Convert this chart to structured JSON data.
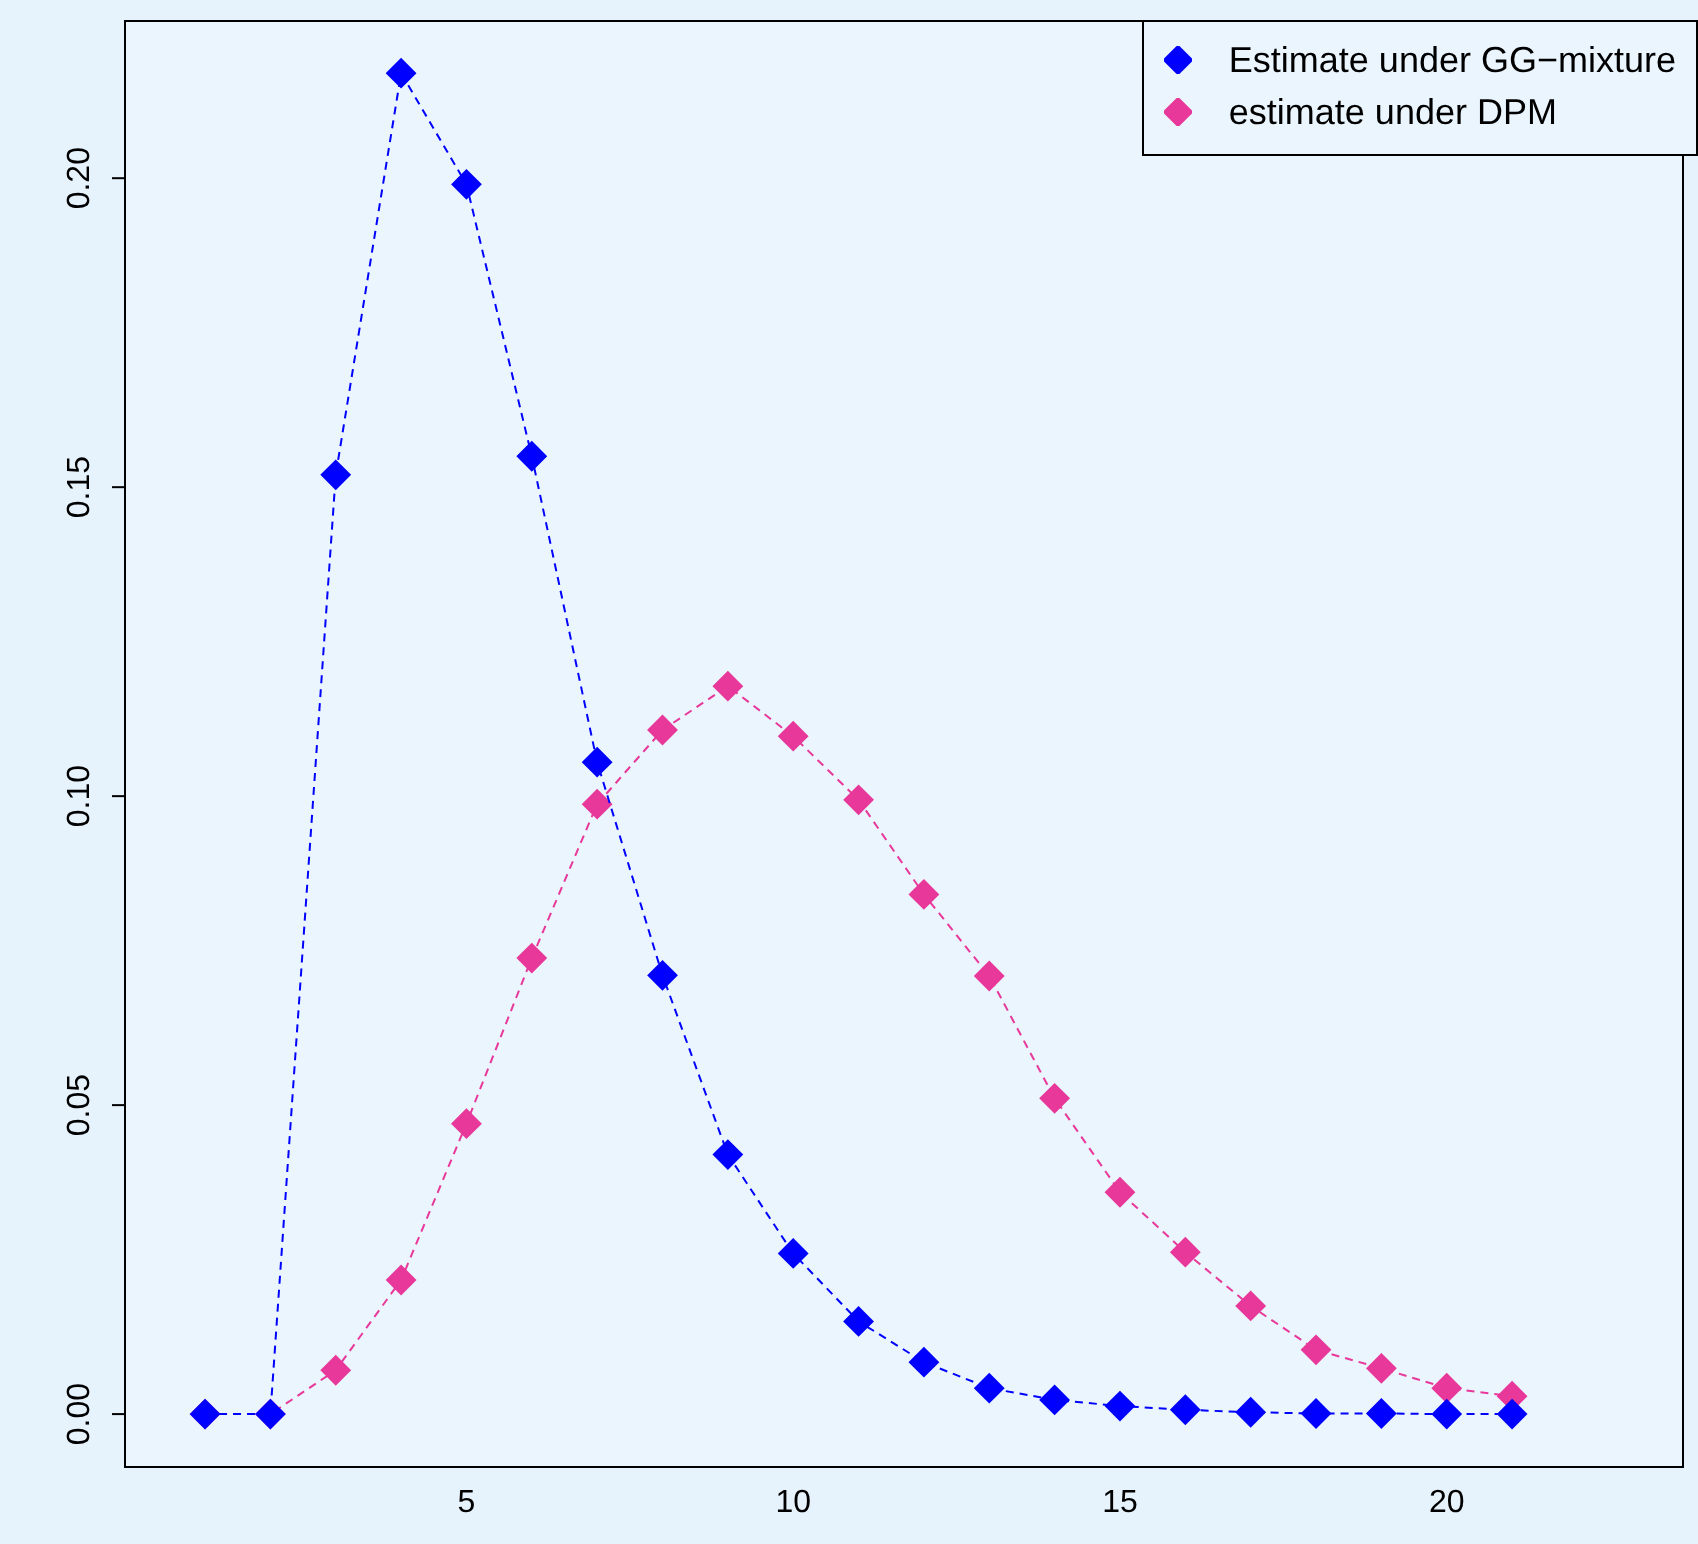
{
  "chart_data": {
    "type": "line",
    "x": [
      1,
      2,
      3,
      4,
      5,
      6,
      7,
      8,
      9,
      10,
      11,
      12,
      13,
      14,
      15,
      16,
      17,
      18,
      19,
      20,
      21
    ],
    "series": [
      {
        "name": "Estimate under GG−mixture",
        "color": "#0000ff",
        "values": [
          0,
          0,
          0.152,
          0.217,
          0.199,
          0.155,
          0.1055,
          0.071,
          0.042,
          0.026,
          0.015,
          0.0084,
          0.0042,
          0.0023,
          0.0013,
          0.0007,
          0.0003,
          0.0001,
          0.0001,
          0,
          0
        ]
      },
      {
        "name": "estimate under DPM",
        "color": "#e8389a",
        "values": [
          0,
          0,
          0.0071,
          0.0217,
          0.047,
          0.0738,
          0.0987,
          0.1107,
          0.1178,
          0.1097,
          0.0994,
          0.0841,
          0.0709,
          0.0511,
          0.0359,
          0.0262,
          0.0175,
          0.0104,
          0.0074,
          0.0042,
          0.0029
        ]
      }
    ],
    "xlim": [
      -0.24,
      23.6
    ],
    "xticks": [
      5,
      10,
      15,
      20
    ],
    "ylim": [
      -0.0084,
      0.2256
    ],
    "yticks": [
      {
        "value": 0,
        "label": "0.00"
      },
      {
        "value": 0.05,
        "label": "0.05"
      },
      {
        "value": 0.1,
        "label": "0.10"
      },
      {
        "value": 0.15,
        "label": "0.15"
      },
      {
        "value": 0.2,
        "label": "0.20"
      }
    ],
    "legend": "top right",
    "marker": "diamond",
    "line_style": "dashed",
    "grid": false
  }
}
